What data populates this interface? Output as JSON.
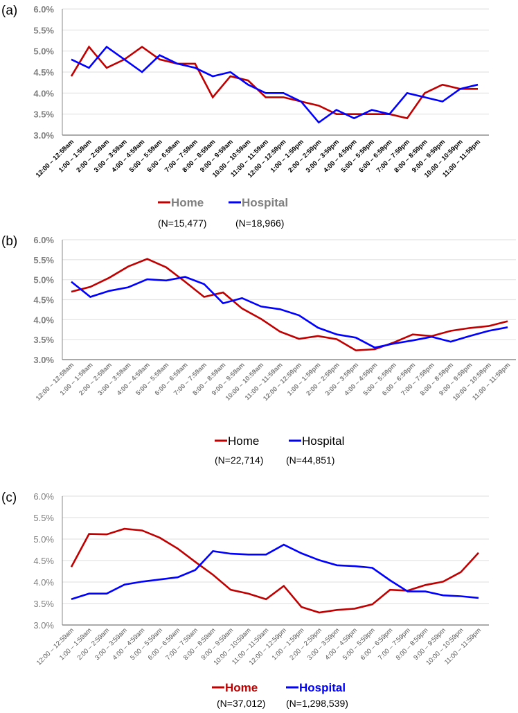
{
  "chart_data": [
    {
      "type": "line",
      "panel_label": "(a)",
      "categories": [
        "12:00 – 12:59am",
        "1:00 – 1:59am",
        "2:00 – 2:59am",
        "3:00 – 3:59am",
        "4:00 – 4:59am",
        "5:00 – 5:59am",
        "6:00 – 6:59am",
        "7:00 – 7:59am",
        "8:00 – 8:59am",
        "9:00 – 9:59am",
        "10:00 – 10:59am",
        "11:00 – 11:59am",
        "12:00 – 12:59pm",
        "1:00 – 1:59pm",
        "2:00 – 2:59pm",
        "3:00 – 3:59pm",
        "4:00 – 4:59pm",
        "5:00 – 5:59pm",
        "6:00 – 6:59pm",
        "7:00 – 7:59pm",
        "8:00 – 8:59pm",
        "9:00 – 9:59pm",
        "10:00 – 10:59pm",
        "11:00 – 11:59pm"
      ],
      "yticks": [
        "3.0%",
        "3.5%",
        "4.0%",
        "4.5%",
        "5.0%",
        "5.5%",
        "6.0%"
      ],
      "ylim": [
        3.0,
        6.0
      ],
      "grid": true,
      "legend_placement": "bottom",
      "series": [
        {
          "name": "Home",
          "n_label": "(N=15,477)",
          "color": "#c00000",
          "values": [
            4.4,
            5.1,
            4.6,
            4.8,
            5.1,
            4.8,
            4.7,
            4.7,
            3.9,
            4.4,
            4.3,
            3.9,
            3.9,
            3.8,
            3.7,
            3.5,
            3.5,
            3.5,
            3.5,
            3.4,
            4.0,
            4.2,
            4.1,
            4.1
          ]
        },
        {
          "name": "Hospital",
          "n_label": "(N=18,966)",
          "color": "#0000ff",
          "values": [
            4.8,
            4.6,
            5.1,
            4.8,
            4.5,
            4.9,
            4.7,
            4.6,
            4.4,
            4.5,
            4.2,
            4.0,
            4.0,
            3.8,
            3.3,
            3.6,
            3.4,
            3.6,
            3.5,
            4.0,
            3.9,
            3.8,
            4.1,
            4.2
          ]
        }
      ]
    },
    {
      "type": "line",
      "panel_label": "(b)",
      "categories": [
        "12:00 – 12:59am",
        "1:00 – 1:59am",
        "2:00 – 2:59am",
        "3:00 – 3:59am",
        "4:00 – 4:59am",
        "5:00 – 5:59am",
        "6:00 – 6:59am",
        "7:00 – 7:59am",
        "8:00 – 8:59am",
        "9:00 – 9:59am",
        "10:00 – 10:59am",
        "11:00 – 11:59am",
        "12:00 – 12:59pm",
        "1:00 – 1:59pm",
        "2:00 – 2:59pm",
        "3:00 – 3:59pm",
        "4:00 – 4:59pm",
        "5:00 – 5:59pm",
        "6:00 – 6:59pm",
        "7:00 – 7:59pm",
        "8:00 – 8:59pm",
        "9:00 – 9:59pm",
        "10:00 – 10:59pm",
        "11:00 – 11:59pm"
      ],
      "yticks": [
        "3.0%",
        "3.5%",
        "4.0%",
        "4.5%",
        "5.0%",
        "5.5%",
        "6.0%"
      ],
      "ylim": [
        3.0,
        6.0
      ],
      "grid": true,
      "legend_placement": "bottom",
      "series": [
        {
          "name": "Home",
          "n_label": "(N=22,714)",
          "color": "#c00000",
          "values": [
            4.7,
            4.82,
            5.05,
            5.33,
            5.52,
            5.31,
            4.95,
            4.57,
            4.68,
            4.28,
            4.02,
            3.7,
            3.52,
            3.59,
            3.51,
            3.23,
            3.26,
            3.43,
            3.63,
            3.59,
            3.72,
            3.79,
            3.84,
            3.96
          ]
        },
        {
          "name": "Hospital",
          "n_label": "(N=44,851)",
          "color": "#0000ff",
          "values": [
            4.95,
            4.57,
            4.72,
            4.81,
            5.01,
            4.98,
            5.07,
            4.89,
            4.41,
            4.54,
            4.33,
            4.26,
            4.11,
            3.8,
            3.63,
            3.55,
            3.3,
            3.4,
            3.48,
            3.57,
            3.45,
            3.59,
            3.72,
            3.81
          ]
        }
      ]
    },
    {
      "type": "line",
      "panel_label": "(c)",
      "categories": [
        "12:00 – 12:59am",
        "1:00 – 1:59am",
        "2:00 – 2:59am",
        "3:00 – 3:59am",
        "4:00 – 4:59am",
        "5:00 – 5:59am",
        "6:00 – 6:59am",
        "7:00 – 7:59am",
        "8:00 – 8:59am",
        "9:00 – 9:59am",
        "10:00 – 10:59am",
        "11:00 – 11:59am",
        "12:00 – 12:59pm",
        "1:00 – 1:59pm",
        "2:00 – 2:59pm",
        "3:00 – 3:59pm",
        "4:00 – 4:59pm",
        "5:00 – 5:59pm",
        "6:00 – 6:59pm",
        "7:00 – 7:59pm",
        "8:00 – 8:59pm",
        "9:00 – 9:59pm",
        "10:00 – 10:59pm",
        "11:00 – 11:59pm"
      ],
      "yticks": [
        "3.0%",
        "3.5%",
        "4.0%",
        "4.5%",
        "5.0%",
        "5.5%",
        "6.0%"
      ],
      "ylim": [
        3.0,
        6.0
      ],
      "grid": true,
      "legend_placement": "bottom",
      "series": [
        {
          "name": "Home",
          "n_label": "(N=37,012)",
          "color": "#c00000",
          "values": [
            4.35,
            5.12,
            5.11,
            5.24,
            5.2,
            5.03,
            4.78,
            4.47,
            4.17,
            3.82,
            3.73,
            3.6,
            3.91,
            3.42,
            3.29,
            3.35,
            3.38,
            3.48,
            3.82,
            3.8,
            3.93,
            4.01,
            4.23,
            4.68
          ]
        },
        {
          "name": "Hospital",
          "n_label": "(N=1,298,539)",
          "color": "#0000ff",
          "values": [
            3.6,
            3.73,
            3.73,
            3.94,
            4.01,
            4.06,
            4.11,
            4.28,
            4.72,
            4.66,
            4.64,
            4.64,
            4.87,
            4.67,
            4.51,
            4.39,
            4.37,
            4.33,
            4.04,
            3.78,
            3.78,
            3.69,
            3.67,
            3.63
          ]
        }
      ]
    }
  ]
}
